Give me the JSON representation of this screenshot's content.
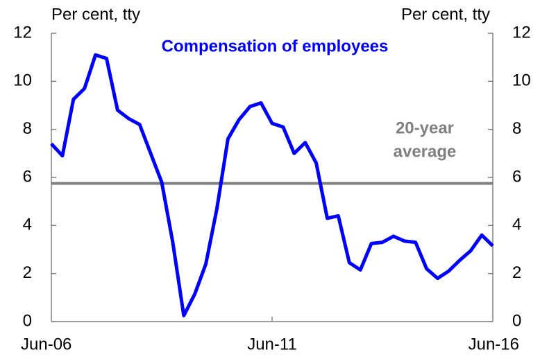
{
  "chart_data": {
    "type": "line",
    "title": "Compensation of employees",
    "y_unit_label": "Per cent, tty",
    "y2_unit_label": "Per cent, tty",
    "categories": [
      "Jun-06",
      null,
      null,
      null,
      null,
      null,
      null,
      null,
      null,
      null,
      null,
      null,
      null,
      null,
      null,
      null,
      null,
      null,
      null,
      null,
      "Jun-11",
      null,
      null,
      null,
      null,
      null,
      null,
      null,
      null,
      null,
      null,
      null,
      null,
      null,
      null,
      null,
      null,
      null,
      null,
      null,
      "Jun-16"
    ],
    "series": [
      {
        "name": "Compensation of employees",
        "color": "#0000ff",
        "values": [
          7.4,
          6.9,
          9.25,
          9.7,
          11.1,
          10.95,
          8.8,
          8.45,
          8.2,
          7.0,
          5.8,
          3.3,
          0.25,
          1.15,
          2.4,
          4.7,
          7.6,
          8.4,
          8.95,
          9.1,
          8.25,
          8.1,
          7.0,
          7.45,
          6.6,
          4.3,
          4.4,
          2.45,
          2.15,
          3.25,
          3.3,
          3.55,
          3.35,
          3.3,
          2.2,
          1.8,
          2.1,
          2.55,
          2.95,
          3.6,
          3.15
        ]
      }
    ],
    "reference_line": {
      "value": 5.75,
      "color": "#808080",
      "label": [
        "20-year",
        "average"
      ]
    },
    "ylim": [
      0,
      12
    ],
    "yticks": [
      0,
      2,
      4,
      6,
      8,
      10,
      12
    ],
    "y2lim": [
      0,
      12
    ],
    "y2ticks": [
      0,
      2,
      4,
      6,
      8,
      10,
      12
    ],
    "grid": false
  }
}
